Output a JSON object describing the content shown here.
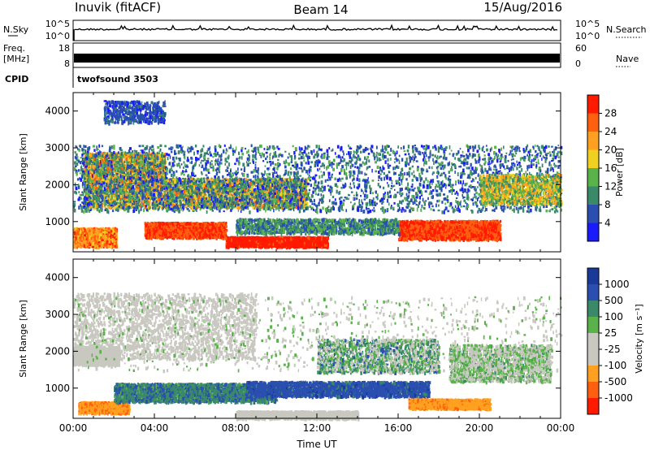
{
  "header": {
    "station": "Inuvik (fitACF)",
    "beam": "Beam 14",
    "date": "15/Aug/2016"
  },
  "cpid_row": {
    "label": "CPID",
    "program": "twofsound 3503"
  },
  "nsky_panel": {
    "left_label": "N.Sky",
    "left_ticks": [
      "10^5",
      "10^0"
    ],
    "right_label": "N.Search",
    "right_ticks": [
      "10^5",
      "10^0"
    ]
  },
  "freq_panel": {
    "left_label_1": "Freq.",
    "left_label_2": "[MHz]",
    "left_ticks": [
      "18",
      "8"
    ],
    "right_label": "Nave",
    "right_ticks": [
      "60",
      "0"
    ]
  },
  "colors": {
    "power": [
      "#1a1aff",
      "#2a4fb0",
      "#3a8a6a",
      "#5ab24a",
      "#f0d020",
      "#ffa020",
      "#ff6010",
      "#ff1a00"
    ],
    "velocity": [
      "#ff1a00",
      "#ff6010",
      "#ffa020",
      "#c8c8c0",
      "#c8c8c0",
      "#5ab24a",
      "#3a8a6a",
      "#2a4fb0",
      "#1a3a9a"
    ]
  },
  "chart_data": [
    {
      "type": "heatmap",
      "title": "",
      "ylabel": "Slant Range [km]",
      "xlabel": "",
      "ylim": [
        180,
        4500
      ],
      "yticks": [
        "1000",
        "2000",
        "3000",
        "4000"
      ],
      "x_range_hours": [
        0,
        24
      ],
      "colorbar_label": "Power [dB]",
      "colorbar_ticks": [
        "4",
        "8",
        "12",
        "16",
        "20",
        "24",
        "28"
      ],
      "colorbar_range": [
        0,
        32
      ]
    },
    {
      "type": "heatmap",
      "title": "",
      "ylabel": "Slant Range [km]",
      "xlabel": "Time UT",
      "ylim": [
        180,
        4500
      ],
      "yticks": [
        "1000",
        "2000",
        "3000",
        "4000"
      ],
      "xticks": [
        "00:00",
        "04:00",
        "08:00",
        "12:00",
        "16:00",
        "20:00",
        "00:00"
      ],
      "x_range_hours": [
        0,
        24
      ],
      "colorbar_label": "Velocity [m s⁻¹]",
      "colorbar_ticks": [
        "1000",
        "500",
        "100",
        "25",
        "-25",
        "-100",
        "-500",
        "-1000"
      ]
    }
  ]
}
